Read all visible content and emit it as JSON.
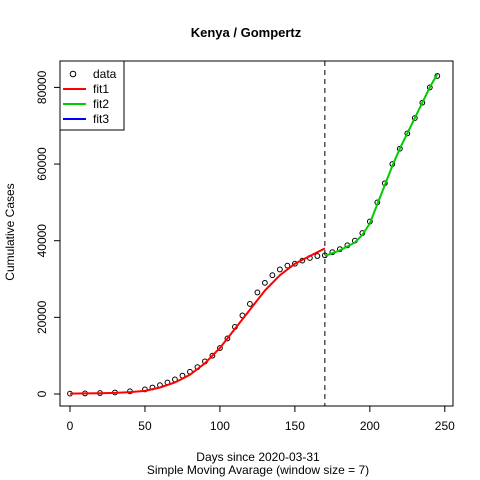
{
  "chart_data": {
    "type": "line",
    "title": "Kenya / Gompertz",
    "xlabel": "Days since 2020-03-31",
    "xlabel2": "Simple Moving Avarage (window size = 7)",
    "ylabel": "Cumulative Cases",
    "xlim": [
      0,
      250
    ],
    "ylim": [
      0,
      85000
    ],
    "xticks": [
      0,
      50,
      100,
      150,
      200,
      250
    ],
    "yticks": [
      0,
      20000,
      40000,
      60000,
      80000
    ],
    "grid": false,
    "legend_position": "top-left",
    "vline_x": 170,
    "legend": [
      {
        "label": "data",
        "kind": "point",
        "color": "#000000"
      },
      {
        "label": "fit1",
        "kind": "line",
        "color": "#ff0000"
      },
      {
        "label": "fit2",
        "kind": "line",
        "color": "#00cd00"
      },
      {
        "label": "fit3",
        "kind": "line",
        "color": "#0000ff"
      }
    ],
    "data_points": {
      "x": [
        0,
        10,
        20,
        30,
        40,
        50,
        55,
        60,
        65,
        70,
        75,
        80,
        85,
        90,
        95,
        100,
        105,
        110,
        115,
        120,
        125,
        130,
        135,
        140,
        145,
        150,
        155,
        160,
        165,
        170,
        175,
        180,
        185,
        190,
        195,
        200,
        205,
        210,
        215,
        220,
        225,
        230,
        235,
        240,
        245
      ],
      "y": [
        100,
        150,
        250,
        400,
        700,
        1200,
        1700,
        2300,
        3000,
        3800,
        4800,
        5800,
        7000,
        8500,
        10000,
        12000,
        14500,
        17500,
        20500,
        23500,
        26500,
        29000,
        31000,
        32500,
        33500,
        34000,
        34800,
        35500,
        36000,
        36200,
        37000,
        37800,
        38800,
        40000,
        42000,
        45000,
        50000,
        55000,
        60000,
        64000,
        68000,
        72000,
        76000,
        80000,
        83000
      ]
    },
    "series": [
      {
        "name": "fit1",
        "color": "#ff0000",
        "x": [
          0,
          10,
          20,
          30,
          40,
          50,
          60,
          70,
          80,
          90,
          100,
          110,
          120,
          130,
          140,
          150,
          160,
          170
        ],
        "y": [
          100,
          150,
          200,
          300,
          500,
          800,
          1700,
          3000,
          5000,
          8000,
          12000,
          17000,
          22000,
          27000,
          31000,
          34000,
          36000,
          38000
        ]
      },
      {
        "name": "fit2",
        "color": "#00cd00",
        "x": [
          170,
          180,
          190,
          195,
          200,
          205,
          210,
          215,
          220,
          225,
          230,
          235,
          240,
          245
        ],
        "y": [
          36000,
          37500,
          39500,
          41500,
          44500,
          49500,
          54500,
          59500,
          64000,
          68000,
          72000,
          76000,
          80000,
          83500
        ]
      }
    ]
  }
}
